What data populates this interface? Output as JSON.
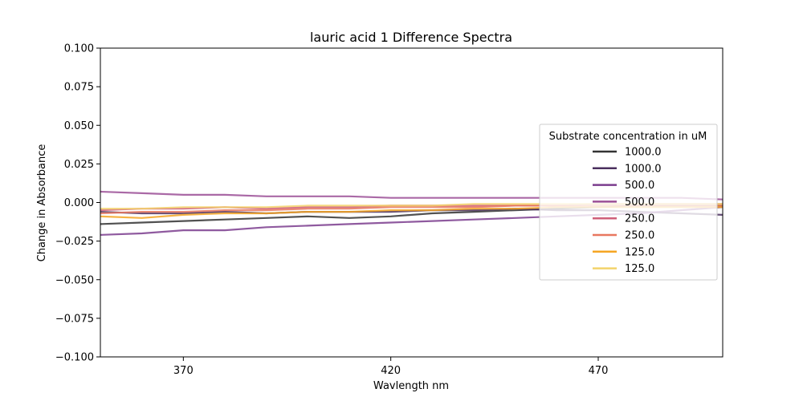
{
  "chart_data": {
    "type": "line",
    "title": "lauric acid 1 Difference Spectra",
    "xlabel": "Wavlength nm",
    "ylabel": "Change in Absorbance",
    "xlim": [
      350,
      500
    ],
    "ylim": [
      -0.1,
      0.1
    ],
    "xticks": [
      370,
      420,
      470
    ],
    "xtick_labels": [
      "370",
      "420",
      "470"
    ],
    "yticks": [
      0.1,
      0.075,
      0.05,
      0.025,
      0.0,
      -0.025,
      -0.05,
      -0.075,
      -0.1
    ],
    "ytick_labels": [
      "0.100",
      "0.075",
      "0.050",
      "0.025",
      "0.000",
      "−0.025",
      "−0.050",
      "−0.075",
      "−0.100"
    ],
    "grid": false,
    "legend": {
      "title": "Substrate concentration in uM",
      "placement": "center-right"
    },
    "series": [
      {
        "name": "1000.0",
        "color": "#333333",
        "x": [
          350,
          360,
          370,
          380,
          390,
          400,
          410,
          420,
          430,
          440,
          450,
          460,
          470,
          480,
          490,
          500
        ],
        "y": [
          -0.014,
          -0.013,
          -0.012,
          -0.011,
          -0.01,
          -0.009,
          -0.01,
          -0.009,
          -0.007,
          -0.006,
          -0.005,
          -0.004,
          -0.003,
          -0.002,
          -0.002,
          -0.002
        ]
      },
      {
        "name": "1000.0",
        "color": "#4a2f5e",
        "x": [
          350,
          360,
          370,
          380,
          390,
          400,
          410,
          420,
          430,
          440,
          450,
          460,
          470,
          480,
          490,
          500
        ],
        "y": [
          -0.006,
          -0.007,
          -0.007,
          -0.006,
          -0.007,
          -0.006,
          -0.006,
          -0.006,
          -0.005,
          -0.005,
          -0.004,
          -0.005,
          -0.005,
          -0.006,
          -0.007,
          -0.008
        ]
      },
      {
        "name": "500.0",
        "color": "#7b3d8e",
        "x": [
          350,
          360,
          370,
          380,
          390,
          400,
          410,
          420,
          430,
          440,
          450,
          460,
          470,
          480,
          490,
          500
        ],
        "y": [
          -0.021,
          -0.02,
          -0.018,
          -0.018,
          -0.016,
          -0.015,
          -0.014,
          -0.013,
          -0.012,
          -0.011,
          -0.01,
          -0.009,
          -0.008,
          -0.007,
          -0.005,
          -0.003
        ]
      },
      {
        "name": "500.0",
        "color": "#9b4f96",
        "x": [
          350,
          360,
          370,
          380,
          390,
          400,
          410,
          420,
          430,
          440,
          450,
          460,
          470,
          480,
          490,
          500
        ],
        "y": [
          0.007,
          0.006,
          0.005,
          0.005,
          0.004,
          0.004,
          0.004,
          0.003,
          0.003,
          0.003,
          0.003,
          0.003,
          0.003,
          0.003,
          0.003,
          0.002
        ]
      },
      {
        "name": "250.0",
        "color": "#cf5f7a",
        "x": [
          350,
          360,
          370,
          380,
          390,
          400,
          410,
          420,
          430,
          440,
          450,
          460,
          470,
          480,
          490,
          500
        ],
        "y": [
          -0.005,
          -0.004,
          -0.004,
          -0.003,
          -0.004,
          -0.003,
          -0.003,
          -0.002,
          -0.002,
          -0.002,
          -0.002,
          -0.002,
          -0.001,
          -0.001,
          -0.001,
          -0.001
        ]
      },
      {
        "name": "250.0",
        "color": "#e8775f",
        "x": [
          350,
          360,
          370,
          380,
          390,
          400,
          410,
          420,
          430,
          440,
          450,
          460,
          470,
          480,
          490,
          500
        ],
        "y": [
          -0.007,
          -0.006,
          -0.006,
          -0.005,
          -0.005,
          -0.004,
          -0.004,
          -0.003,
          -0.003,
          -0.003,
          -0.002,
          -0.002,
          -0.002,
          -0.002,
          -0.002,
          -0.002
        ]
      },
      {
        "name": "125.0",
        "color": "#f5a623",
        "x": [
          350,
          360,
          370,
          380,
          390,
          400,
          410,
          420,
          430,
          440,
          450,
          460,
          470,
          480,
          490,
          500
        ],
        "y": [
          -0.009,
          -0.01,
          -0.008,
          -0.007,
          -0.007,
          -0.006,
          -0.006,
          -0.005,
          -0.005,
          -0.004,
          -0.004,
          -0.003,
          -0.003,
          -0.003,
          -0.003,
          -0.003
        ]
      },
      {
        "name": "125.0",
        "color": "#f3d36b",
        "x": [
          350,
          360,
          370,
          380,
          390,
          400,
          410,
          420,
          430,
          440,
          450,
          460,
          470,
          480,
          490,
          500
        ],
        "y": [
          -0.004,
          -0.004,
          -0.003,
          -0.003,
          -0.003,
          -0.002,
          -0.002,
          -0.002,
          -0.002,
          -0.001,
          -0.001,
          -0.001,
          -0.001,
          -0.001,
          -0.001,
          -0.001
        ]
      }
    ]
  }
}
